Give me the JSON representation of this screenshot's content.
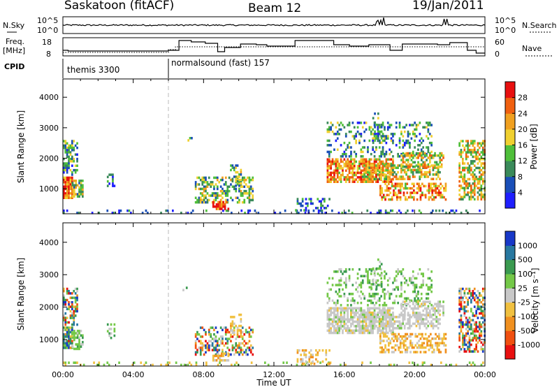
{
  "header": {
    "title": "Saskatoon (fitACF)",
    "beam": "Beam 12",
    "date": "19/Jan/2011"
  },
  "noise_panel": {
    "left_label": "N.Sky",
    "right_label": "N.Search",
    "left_ticks": [
      "10^5",
      "10^0"
    ],
    "right_ticks": [
      "10^5",
      "10^0"
    ]
  },
  "freq_panel": {
    "left_label_1": "Freq.",
    "left_label_2": "[MHz]",
    "left_ticks": [
      "18",
      "8"
    ],
    "right_label": "Nave",
    "right_ticks": [
      "60",
      "0"
    ]
  },
  "cpid": {
    "label": "CPID",
    "modes": [
      {
        "name": "themis 3300",
        "start_hour": 0
      },
      {
        "name": "normalsound (fast) 157",
        "start_hour": 6
      }
    ]
  },
  "chart_data": [
    {
      "type": "heatmap",
      "name": "power",
      "xlabel": "Time UT",
      "ylabel": "Slant Range [km]",
      "xlim": [
        0,
        24
      ],
      "ylim": [
        180,
        4600
      ],
      "yticks": [
        "1000",
        "2000",
        "3000",
        "4000"
      ],
      "xticks": [
        "00:00",
        "04:00",
        "08:00",
        "12:00",
        "16:00",
        "20:00",
        "00:00"
      ],
      "colorbar": {
        "label": "Power [dB]",
        "ticks": [
          "4",
          "8",
          "12",
          "16",
          "20",
          "24",
          "28"
        ],
        "colors": [
          "#1f1fff",
          "#1a4fb8",
          "#3a8a5a",
          "#4fbf3a",
          "#f0d030",
          "#f0a020",
          "#f06010",
          "#e81010"
        ]
      }
    },
    {
      "type": "heatmap",
      "name": "velocity",
      "xlabel": "Time UT",
      "ylabel": "Slant Range [km]",
      "xlim": [
        0,
        24
      ],
      "ylim": [
        180,
        4600
      ],
      "yticks": [
        "1000",
        "2000",
        "3000",
        "4000"
      ],
      "xticks": [
        "00:00",
        "04:00",
        "08:00",
        "12:00",
        "16:00",
        "20:00",
        "00:00"
      ],
      "colorbar": {
        "label": "Velocity [m s⁻¹]",
        "ticks": [
          "1000",
          "500",
          "100",
          "25",
          "-25",
          "-100",
          "-500",
          "-1000"
        ],
        "colors": [
          "#1838c8",
          "#2878a0",
          "#3a9a50",
          "#74c848",
          "#c8c8c8",
          "#f0c040",
          "#f09020",
          "#f05010",
          "#e81010"
        ]
      }
    }
  ],
  "xaxis_title": "Time UT"
}
